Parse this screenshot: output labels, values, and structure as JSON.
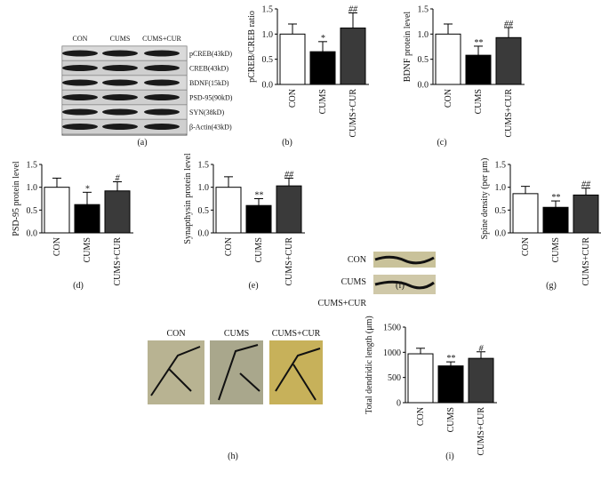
{
  "chart_data": [
    {
      "type": "bar",
      "panel": "(b)",
      "ylabel": "pCREB/CREB ratio",
      "categories": [
        "CON",
        "CUMS",
        "CUMS+CUR"
      ],
      "values": [
        1.0,
        0.65,
        1.12
      ],
      "errors": [
        0.2,
        0.2,
        0.3
      ],
      "sig_labels": [
        null,
        "*",
        "##"
      ],
      "colors": [
        "#ffffff",
        "#000000",
        "#3a3a3a"
      ],
      "ylim": [
        0,
        1.5
      ],
      "yticks": [
        {
          "value": 0,
          "label": "0.0"
        },
        0.5,
        {
          "value": 1,
          "label": "1.0"
        },
        1.5
      ]
    },
    {
      "type": "bar",
      "panel": "(c)",
      "ylabel": "BDNF protein level",
      "categories": [
        "CON",
        "CUMS",
        "CUMS+CUR"
      ],
      "values": [
        1.0,
        0.58,
        0.93
      ],
      "errors": [
        0.2,
        0.18,
        0.2
      ],
      "sig_labels": [
        null,
        "**",
        "##"
      ],
      "colors": [
        "#ffffff",
        "#000000",
        "#3a3a3a"
      ],
      "ylim": [
        0,
        1.5
      ],
      "yticks": [
        {
          "value": 0,
          "label": "0.0"
        },
        0.5,
        {
          "value": 1,
          "label": "1.0"
        },
        1.5
      ]
    },
    {
      "type": "bar",
      "panel": "(d)",
      "ylabel": "PSD-95 protein level",
      "categories": [
        "CON",
        "CUMS",
        "CUMS+CUR"
      ],
      "values": [
        1.0,
        0.62,
        0.92
      ],
      "errors": [
        0.2,
        0.27,
        0.2
      ],
      "sig_labels": [
        null,
        "*",
        "#"
      ],
      "colors": [
        "#ffffff",
        "#000000",
        "#3a3a3a"
      ],
      "ylim": [
        0,
        1.5
      ],
      "yticks": [
        {
          "value": 0,
          "label": "0.0"
        },
        0.5,
        {
          "value": 1,
          "label": "1.0"
        },
        1.5
      ]
    },
    {
      "type": "bar",
      "panel": "(e)",
      "ylabel": "Synapthysin protein level",
      "categories": [
        "CON",
        "CUMS",
        "CUMS+CUR"
      ],
      "values": [
        1.0,
        0.6,
        1.03
      ],
      "errors": [
        0.23,
        0.15,
        0.17
      ],
      "sig_labels": [
        null,
        "**",
        "##"
      ],
      "colors": [
        "#ffffff",
        "#000000",
        "#3a3a3a"
      ],
      "ylim": [
        0,
        1.5
      ],
      "yticks": [
        {
          "value": 0,
          "label": "0.0"
        },
        0.5,
        {
          "value": 1,
          "label": "1.0"
        },
        1.5
      ]
    },
    {
      "type": "bar",
      "panel": "(g)",
      "ylabel": "Spine density (per μm)",
      "categories": [
        "CON",
        "CUMS",
        "CUMS+CUR"
      ],
      "values": [
        0.86,
        0.56,
        0.83
      ],
      "errors": [
        0.16,
        0.14,
        0.15
      ],
      "sig_labels": [
        null,
        "**",
        "##"
      ],
      "colors": [
        "#ffffff",
        "#000000",
        "#3a3a3a"
      ],
      "ylim": [
        0,
        1.5
      ],
      "yticks": [
        {
          "value": 0,
          "label": "0.0"
        },
        0.5,
        {
          "value": 1,
          "label": "1.0"
        },
        1.5
      ]
    },
    {
      "type": "bar",
      "panel": "(i)",
      "ylabel": "Total dendridic length (μm)",
      "categories": [
        "CON",
        "CUMS",
        "CUMS+CUR"
      ],
      "values": [
        970,
        730,
        880
      ],
      "errors": [
        110,
        80,
        130
      ],
      "sig_labels": [
        null,
        "**",
        "#"
      ],
      "colors": [
        "#ffffff",
        "#000000",
        "#3a3a3a"
      ],
      "ylim": [
        0,
        1500
      ],
      "yticks": [
        0,
        500,
        1000,
        1500
      ]
    }
  ],
  "blot": {
    "panel": "(a)",
    "columns": [
      "CON",
      "CUMS",
      "CUMS+CUR"
    ],
    "bands": [
      "pCREB(43kD)",
      "CREB(43kD)",
      "BDNF(15kD)",
      "PSD-95(90kD)",
      "SYN(38kD)",
      "β-Actin(43kD)"
    ]
  },
  "spines": {
    "panel": "(f)",
    "rows": [
      "CON",
      "CUMS",
      "CUMS+CUR"
    ]
  },
  "neurons": {
    "panel": "(h)",
    "columns": [
      "CON",
      "CUMS",
      "CUMS+CUR"
    ]
  }
}
